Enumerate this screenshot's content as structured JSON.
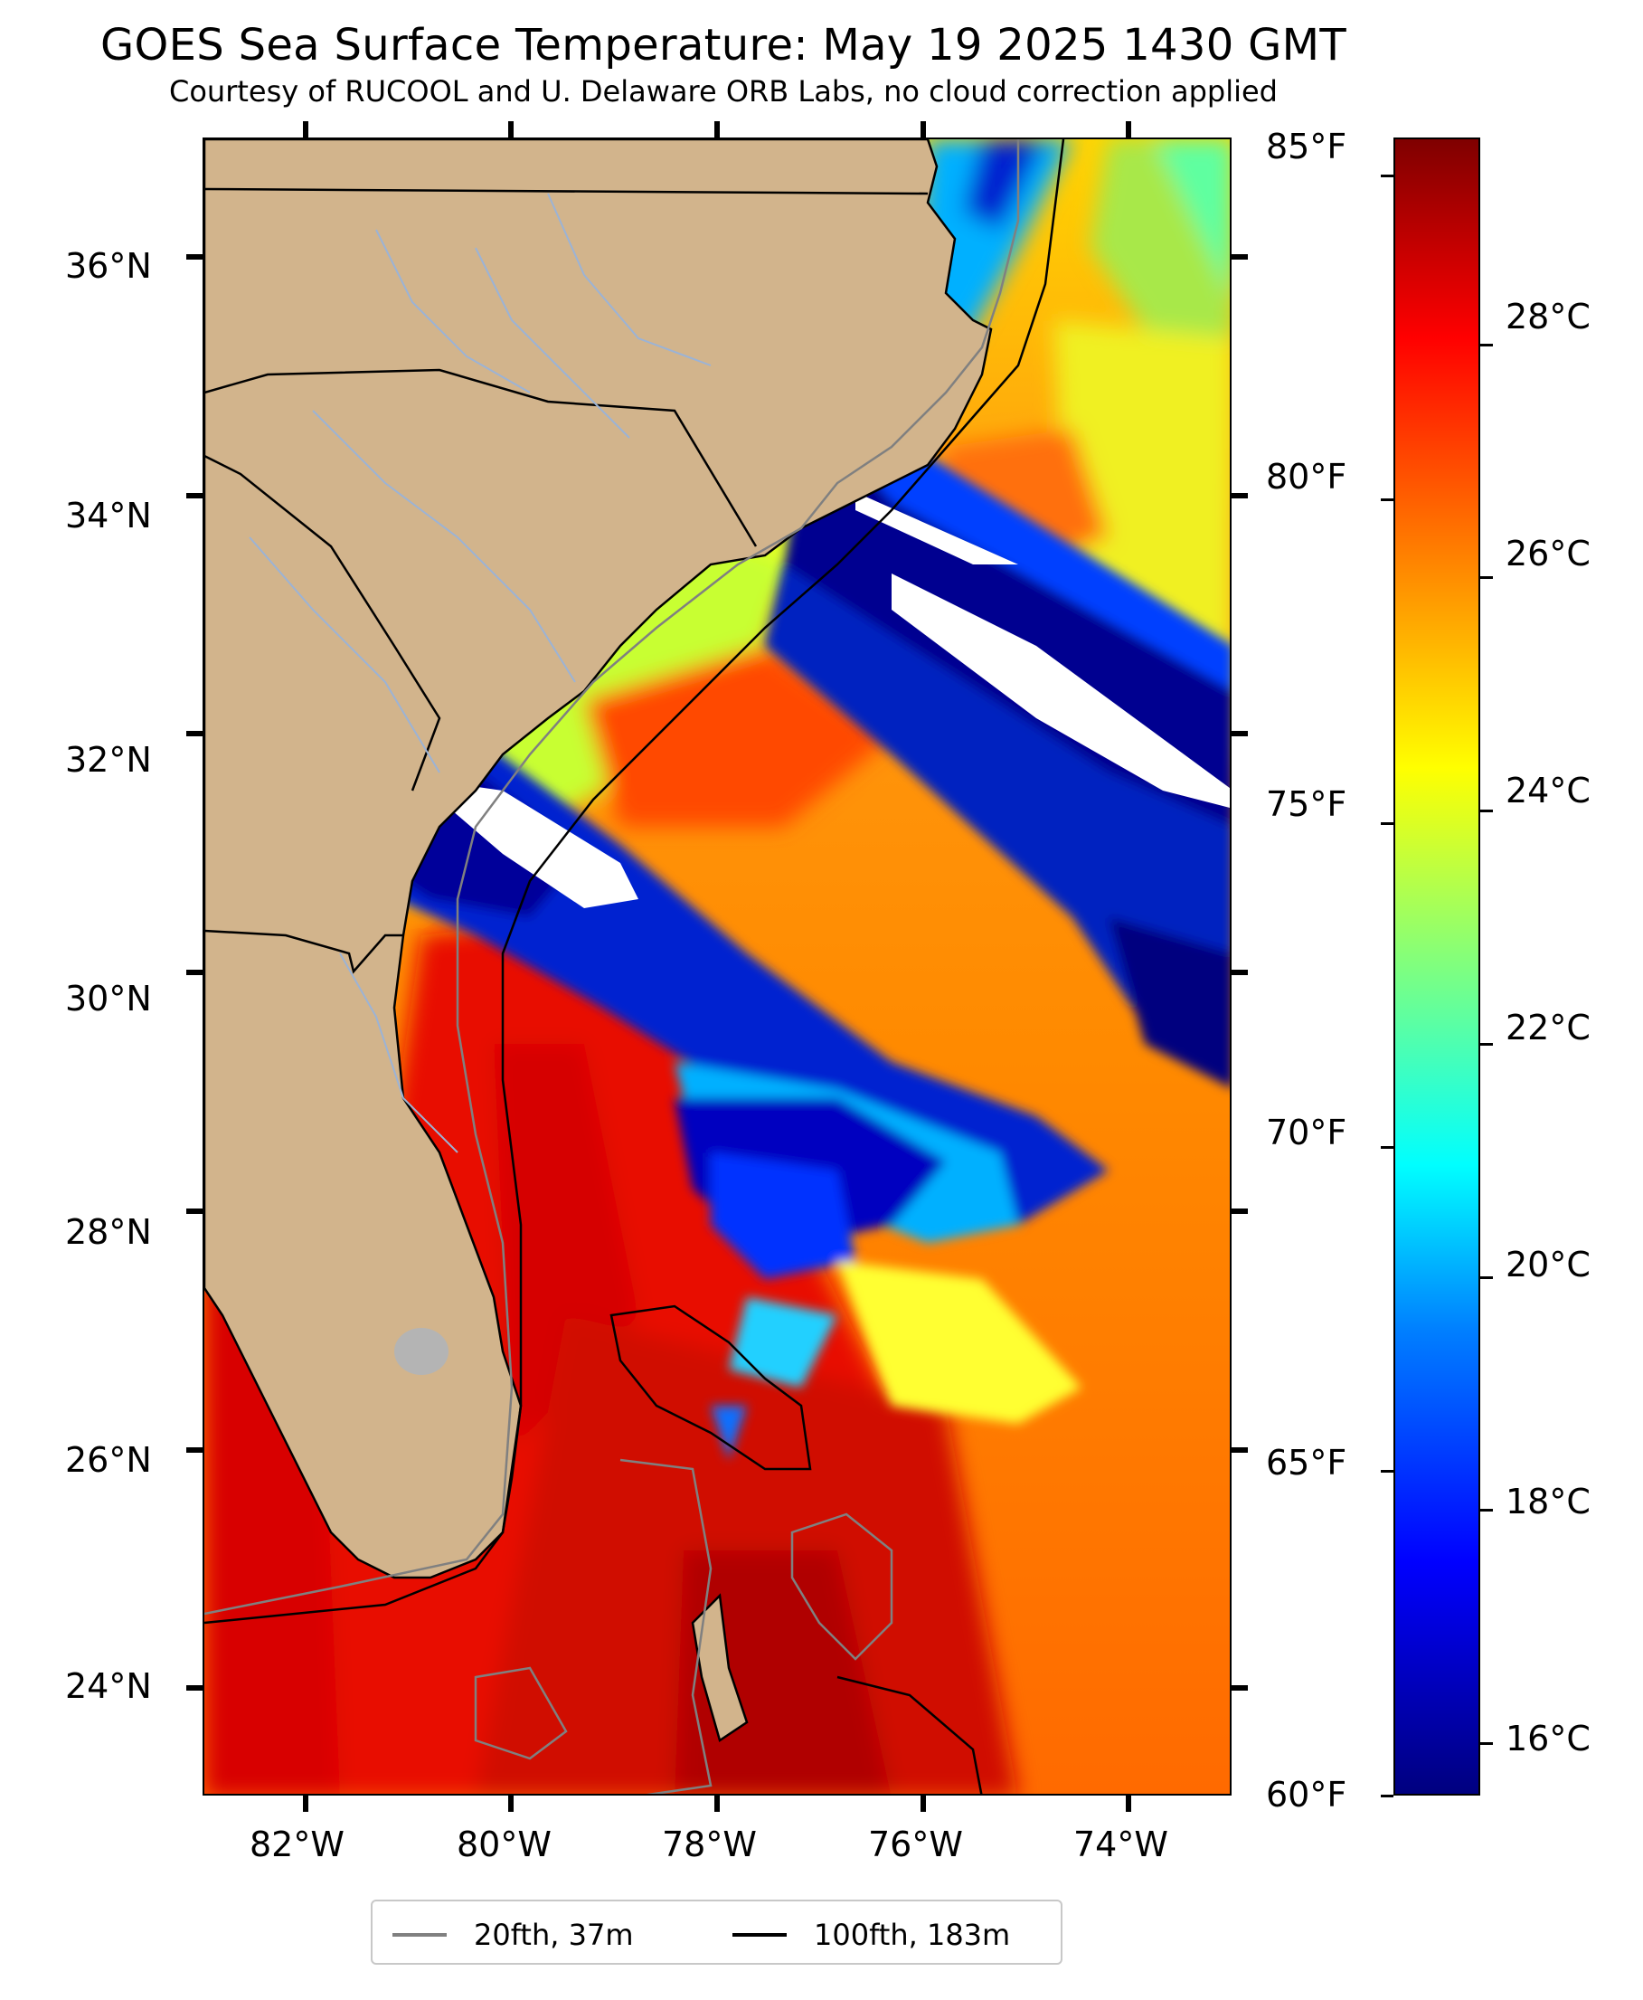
{
  "header": {
    "title": "GOES Sea Surface Temperature: May 19 2025 1430 GMT",
    "subtitle": "Courtesy of RUCOOL and U. Delaware ORB Labs, no cloud correction applied"
  },
  "map": {
    "lat_range": [
      23.1,
      37.0
    ],
    "lon_range": [
      -83.0,
      -73.0
    ],
    "lat_ticks": [
      "36°N",
      "34°N",
      "32°N",
      "30°N",
      "28°N",
      "26°N",
      "24°N"
    ],
    "lat_values": [
      36,
      34,
      32,
      30,
      28,
      26,
      24
    ],
    "lon_ticks": [
      "82°W",
      "80°W",
      "78°W",
      "76°W",
      "74°W"
    ],
    "lon_values": [
      -82,
      -80,
      -78,
      -76,
      -74
    ],
    "colors": {
      "land": "#d2b48c",
      "cloud": "#ffffff",
      "contour_20fth": "#808080",
      "contour_100fth": "#000000",
      "lake": "#b4b4b4"
    }
  },
  "colorbar": {
    "fahrenheit_labels": [
      "85°F",
      "80°F",
      "75°F",
      "70°F",
      "65°F",
      "60°F"
    ],
    "fahrenheit_values": [
      85,
      80,
      75,
      70,
      65,
      60
    ],
    "celsius_labels": [
      "28°C",
      "26°C",
      "24°C",
      "22°C",
      "20°C",
      "18°C",
      "16°C"
    ],
    "celsius_values": [
      28,
      26,
      24,
      22,
      20,
      18,
      16
    ],
    "range_f": [
      60,
      85.6
    ],
    "colormap": "jet"
  },
  "legend": {
    "items": [
      {
        "label": "20fth, 37m",
        "color": "#808080"
      },
      {
        "label": "100fth, 183m",
        "color": "#000000"
      }
    ],
    "placement": "bottom-center"
  }
}
